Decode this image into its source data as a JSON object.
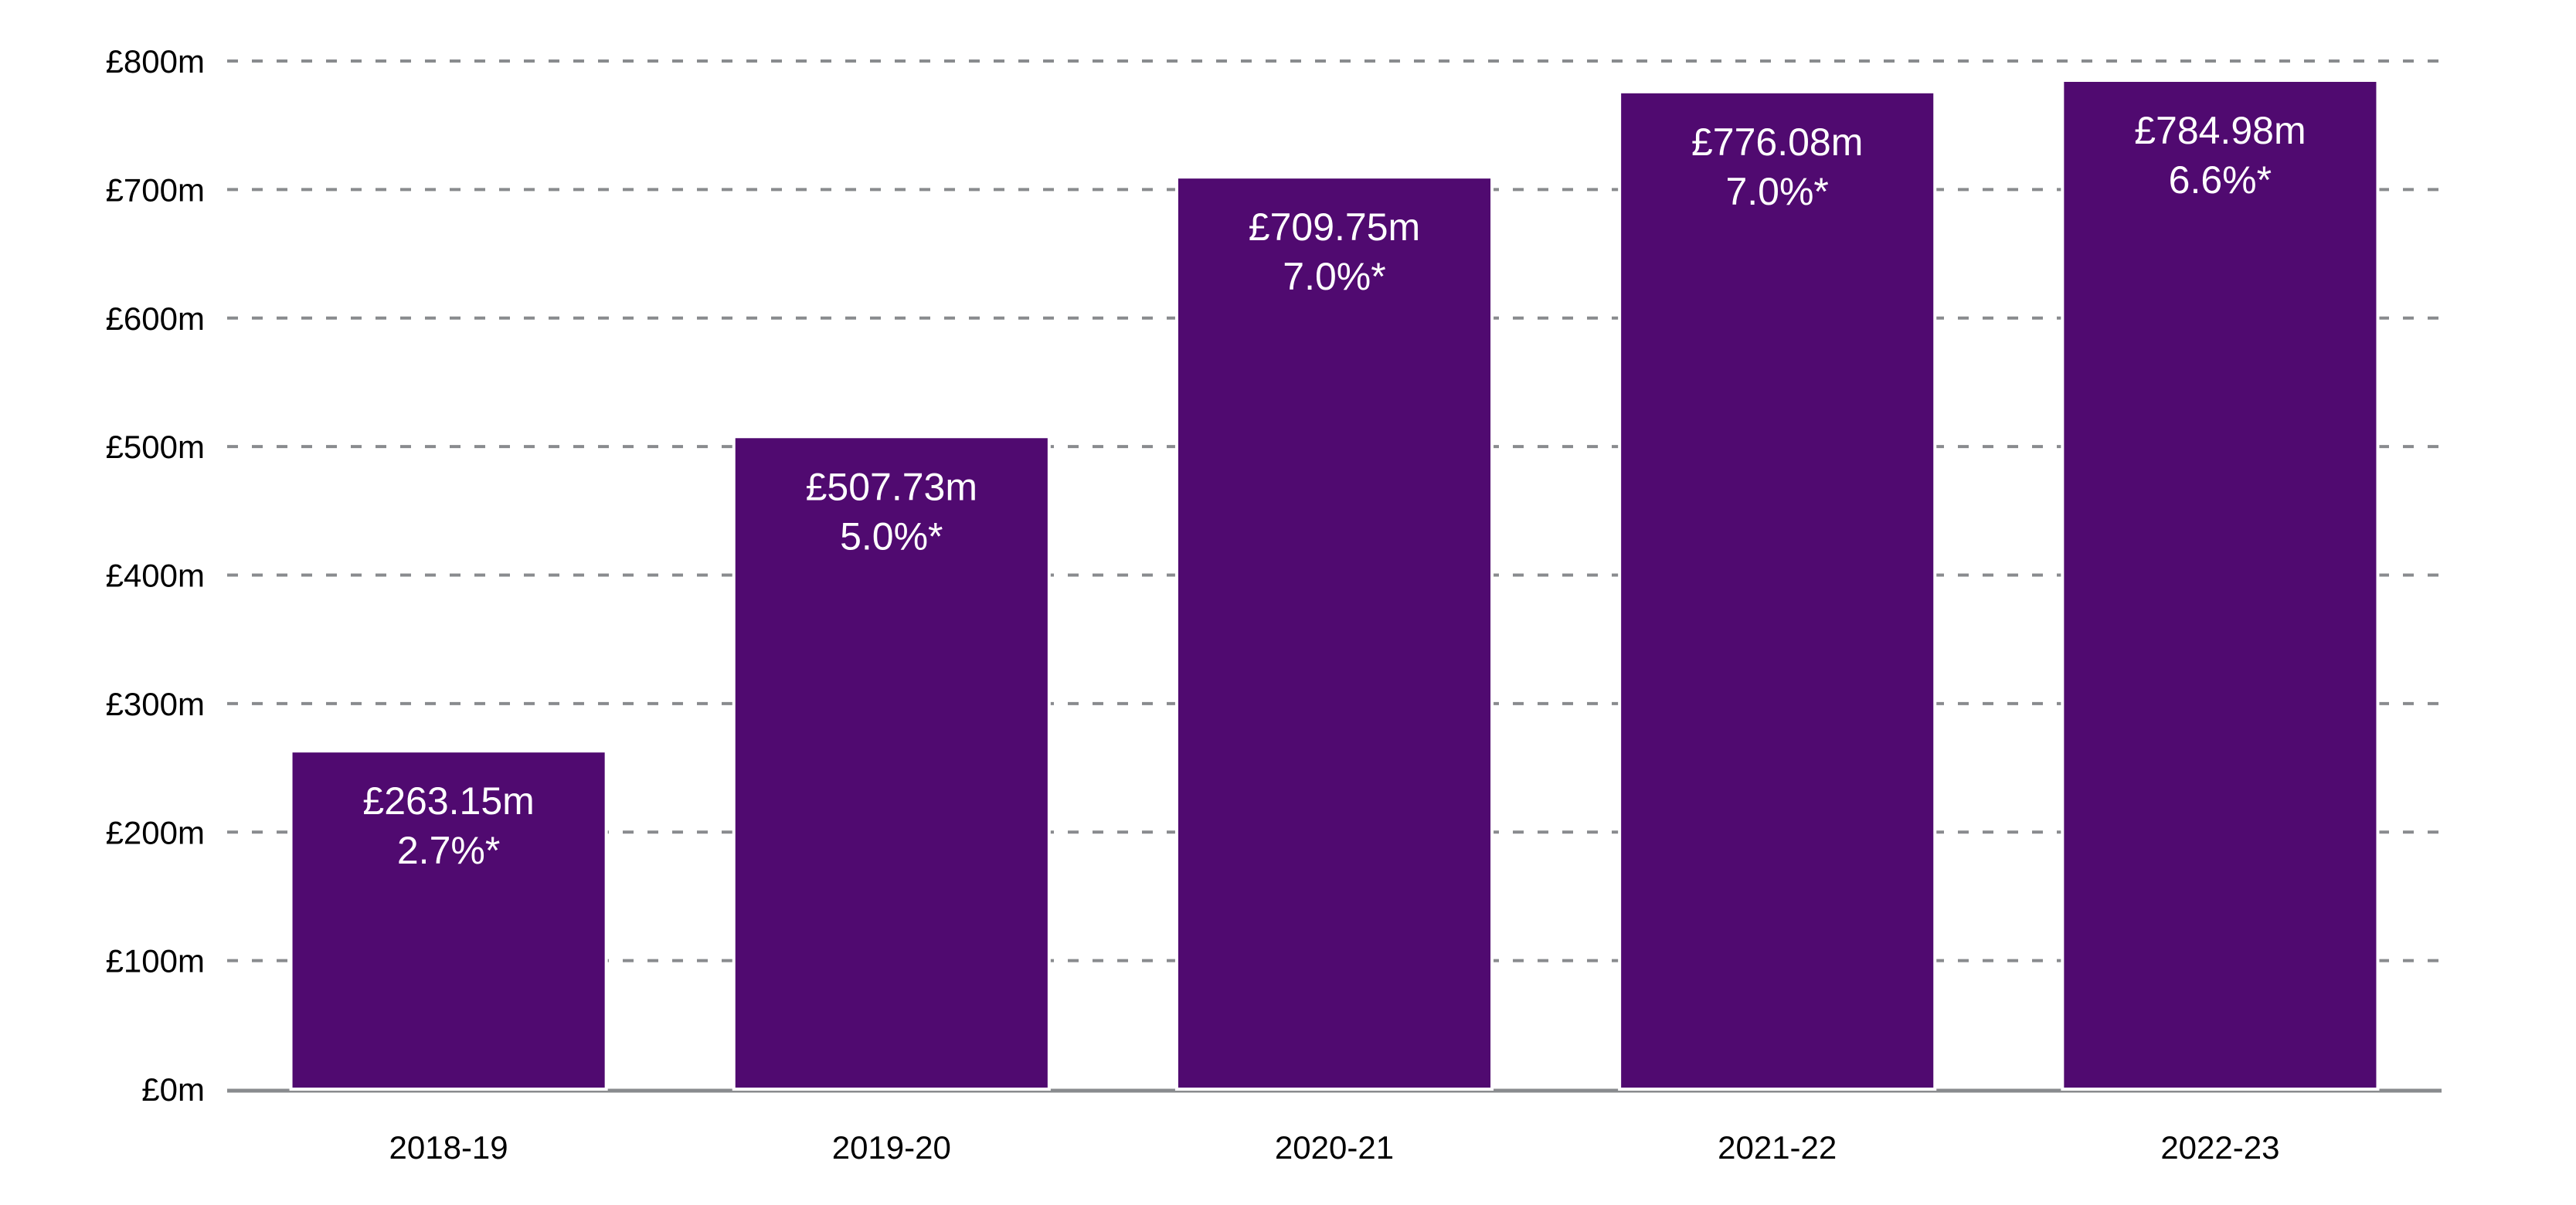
{
  "chart_data": {
    "type": "bar",
    "title": "",
    "xlabel": "",
    "ylabel": "",
    "categories": [
      "2018-19",
      "2019-20",
      "2020-21",
      "2021-22",
      "2022-23"
    ],
    "values": [
      263.15,
      507.73,
      709.75,
      776.08,
      784.98
    ],
    "value_labels": [
      "£263.15m",
      "£507.73m",
      "£709.75m",
      "£776.08m",
      "£784.98m"
    ],
    "percent_labels": [
      "2.7%*",
      "5.0%*",
      "7.0%*",
      "7.0%*",
      "6.6%*"
    ],
    "ylim": [
      0,
      800
    ],
    "yticks": [
      0,
      100,
      200,
      300,
      400,
      500,
      600,
      700,
      800
    ],
    "ytick_labels": [
      "£0m",
      "£100m",
      "£200m",
      "£300m",
      "£400m",
      "£500m",
      "£600m",
      "£700m",
      "£800m"
    ],
    "grid": "horizontal dashed",
    "legend": "none",
    "colors": {
      "bar": "#500a70",
      "grid": "#898b8e",
      "text": "#000000",
      "bar_text": "#ffffff"
    }
  }
}
